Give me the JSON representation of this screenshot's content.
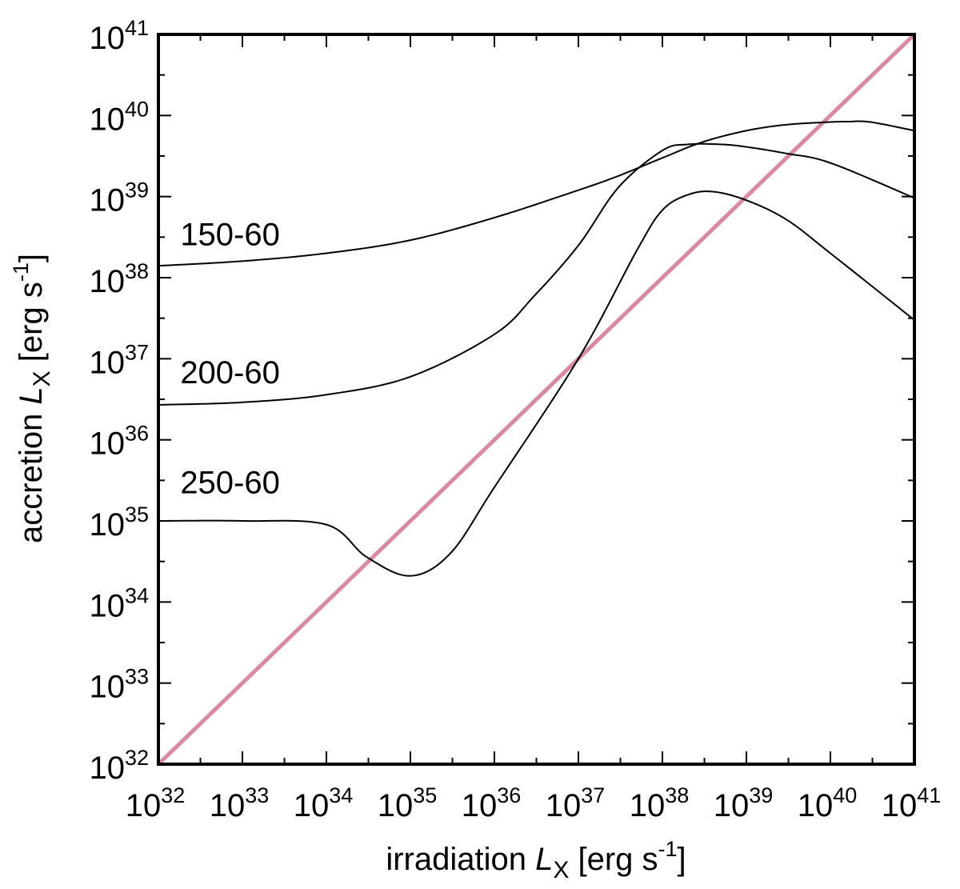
{
  "chart_data": {
    "type": "line",
    "title": "",
    "xlabel": {
      "prefix": "irradiation ",
      "var": "L",
      "sub": "X",
      "unit": " [erg s",
      "unit_exp": "-1",
      "unit_end": "]"
    },
    "ylabel": {
      "prefix": "accretion ",
      "var": "L",
      "sub": "X",
      "unit": " [erg s",
      "unit_exp": "-1",
      "unit_end": "]"
    },
    "x_scale": "log",
    "y_scale": "log",
    "xlim": [
      1e+32,
      1e+41
    ],
    "ylim": [
      1e+32,
      1e+41
    ],
    "tick_base": "10",
    "x_ticks": [
      "32",
      "33",
      "34",
      "35",
      "36",
      "37",
      "38",
      "39",
      "40",
      "41"
    ],
    "y_ticks": [
      "32",
      "33",
      "34",
      "35",
      "36",
      "37",
      "38",
      "39",
      "40",
      "41"
    ],
    "grid": false,
    "colors": {
      "equality_line": "#d88aa3",
      "curves": "#000000"
    },
    "equality_line": {
      "x": [
        1e+32,
        1e+41
      ],
      "y": [
        1e+32,
        1e+41
      ]
    },
    "series": [
      {
        "name": "150-60",
        "x": [
          1e+32,
          1e+33,
          1e+34,
          1e+35,
          1e+36,
          1e+37,
          3e+37,
          1e+38,
          3e+38,
          1e+39,
          3e+39,
          1e+40,
          1.6e+40,
          3e+40,
          1e+41
        ],
        "y": [
          1.4e+38,
          1.6e+38,
          2e+38,
          2.9e+38,
          5.5e+38,
          1.2e+39,
          1.8e+39,
          3e+39,
          4.7e+39,
          6.5e+39,
          7.7e+39,
          8.3e+39,
          8.4e+39,
          8.3e+39,
          6.5e+39
        ]
      },
      {
        "name": "200-60",
        "x": [
          1e+32,
          1e+33,
          1e+34,
          1e+35,
          1e+36,
          3e+36,
          1e+37,
          3e+37,
          1e+38,
          2e+38,
          5e+38,
          1e+39,
          3e+39,
          1e+40,
          1e+41
        ],
        "y": [
          2.7e+36,
          2.9e+36,
          3.6e+36,
          6e+36,
          2e+37,
          6e+37,
          2.5e+38,
          1.3e+39,
          3.7e+39,
          4.4e+39,
          4.4e+39,
          4.1e+39,
          3.4e+39,
          2.6e+39,
          9.6e+38
        ]
      },
      {
        "name": "250-60",
        "x": [
          1e+32,
          1e+33,
          1e+34,
          3e+34,
          1e+35,
          3e+35,
          1e+36,
          1e+37,
          5e+37,
          1e+38,
          2e+38,
          4e+38,
          1e+39,
          3e+39,
          1e+40,
          1e+41
        ],
        "y": [
          1e+35,
          1e+35,
          9e+34,
          3.6e+34,
          2.1e+34,
          4e+34,
          2.6e+35,
          1e+37,
          2.2e+38,
          6.8e+38,
          1.05e+39,
          1.15e+39,
          9e+38,
          5.2e+38,
          2e+38,
          3e+37
        ]
      }
    ],
    "curve_labels": [
      {
        "text": "150-60",
        "x": 1.2e+32,
        "y": 2.5e+38
      },
      {
        "text": "200-60",
        "x": 1.2e+32,
        "y": 5e+36
      },
      {
        "text": "250-60",
        "x": 1.2e+32,
        "y": 2.2e+35
      }
    ]
  }
}
